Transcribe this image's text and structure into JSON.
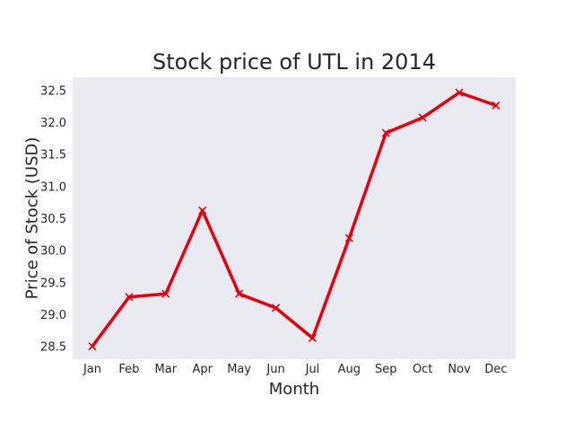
{
  "chart_data": {
    "type": "line",
    "title": "Stock price of UTL in 2014",
    "xlabel": "Month",
    "ylabel": "Price of Stock (USD)",
    "categories": [
      "Jan",
      "Feb",
      "Mar",
      "Apr",
      "May",
      "Jun",
      "Jul",
      "Aug",
      "Sep",
      "Oct",
      "Nov",
      "Dec"
    ],
    "series": [
      {
        "values": [
          28.5,
          29.27,
          29.32,
          30.62,
          29.32,
          29.1,
          28.63,
          30.19,
          31.83,
          32.07,
          32.46,
          32.26
        ],
        "color": "#e8000b",
        "marker": "x"
      }
    ],
    "ylim": [
      28.3,
      32.7
    ],
    "yticks": [
      "28.5",
      "29.0",
      "29.5",
      "30.0",
      "30.5",
      "31.0",
      "31.5",
      "32.0",
      "32.5"
    ],
    "grid": false,
    "background": "#eaeaf2"
  }
}
